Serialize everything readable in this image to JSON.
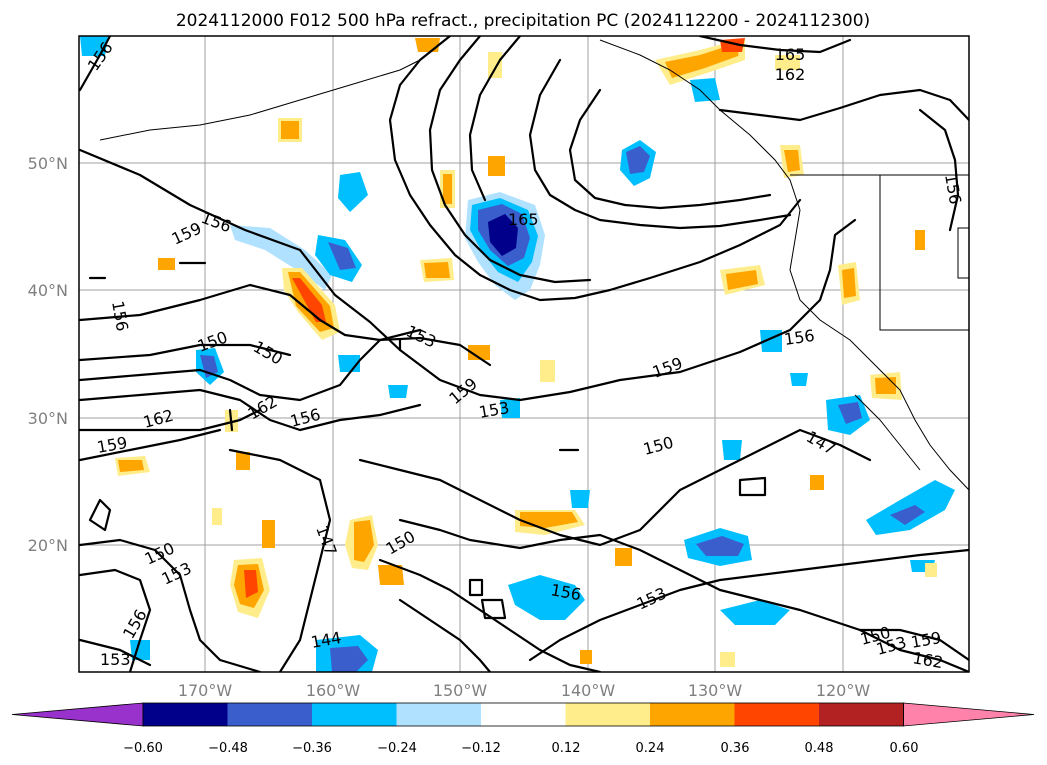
{
  "title": "2024112000 F012 500 hPa refract., precipitation PC (2024112200 - 2024112300)",
  "map": {
    "lat_labels": [
      "50°N",
      "40°N",
      "30°N",
      "20°N"
    ],
    "lon_labels": [
      "170°W",
      "160°W",
      "150°W",
      "140°W",
      "130°W",
      "120°W"
    ],
    "grid": true,
    "contour_color": "#000000",
    "contour_labels": [
      "156",
      "165",
      "162",
      "156",
      "159",
      "156",
      "165",
      "156",
      "150",
      "150",
      "153",
      "162",
      "162",
      "156",
      "159",
      "153",
      "159",
      "159",
      "156",
      "150",
      "147",
      "147",
      "150",
      "150",
      "153",
      "156",
      "153",
      "156",
      "144",
      "153",
      "150",
      "153",
      "159",
      "162"
    ]
  },
  "colorbar": {
    "ticks": [
      "−0.60",
      "−0.48",
      "−0.36",
      "−0.24",
      "−0.12",
      "0.12",
      "0.24",
      "0.36",
      "0.48",
      "0.60"
    ],
    "colors": [
      "#9932cc",
      "#00008b",
      "#3a5fcd",
      "#00bfff",
      "#b0e2ff",
      "#ffffff",
      "#ffec8b",
      "#ffa500",
      "#ff4500",
      "#b22222",
      "#ff82ab"
    ],
    "extend": "both"
  }
}
